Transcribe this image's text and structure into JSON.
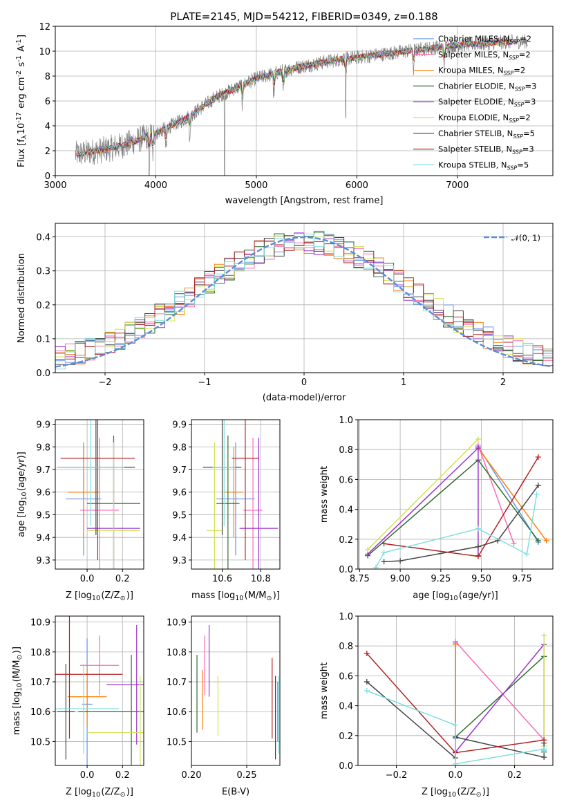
{
  "title": "PLATE=2145, MJD=54212, FIBERID=0349, z=0.188",
  "colors": {
    "Chabrier MILES": "#6495ed",
    "Salpeter MILES": "#ff69b4",
    "Kroupa MILES": "#ff7f0e",
    "Chabrier ELODIE": "#2e6b2e",
    "Salpeter ELODIE": "#9932cc",
    "Kroupa ELODIE": "#d4e157",
    "Chabrier STELIB": "#444444",
    "Salpeter STELIB": "#b22222",
    "Kroupa STELIB": "#80dedf",
    "normal": "#5b8bd9",
    "data": "#808080"
  },
  "chart_data": [
    {
      "id": "spectrum",
      "type": "line",
      "xlabel": "wavelength [Angstrom, rest frame]",
      "ylabel": "Flux [f$_\\lambda$10$^{-17}$ erg cm$^{-2}$ s$^{-1}$ A$^{-1}$]",
      "xlim": [
        3000,
        7950
      ],
      "ylim": [
        0,
        12
      ],
      "xticks": [
        "3000",
        "4000",
        "5000",
        "6000",
        "7000"
      ],
      "yticks": [
        "0",
        "2",
        "4",
        "6",
        "8",
        "10",
        "12"
      ],
      "legend_position": "right",
      "legend": [
        {
          "label": "Chabrier MILES, N",
          "sub": "SSP",
          "suffix": "=2"
        },
        {
          "label": "Salpeter MILES, N",
          "sub": "SSP",
          "suffix": "=2"
        },
        {
          "label": "Kroupa MILES, N",
          "sub": "SSP",
          "suffix": "=2"
        },
        {
          "label": "Chabrier ELODIE, N",
          "sub": "SSP",
          "suffix": "=3"
        },
        {
          "label": "Salpeter ELODIE, N",
          "sub": "SSP",
          "suffix": "=3"
        },
        {
          "label": "Kroupa ELODIE, N",
          "sub": "SSP",
          "suffix": "=2"
        },
        {
          "label": "Chabrier STELIB, N",
          "sub": "SSP",
          "suffix": "=5"
        },
        {
          "label": "Salpeter STELIB, N",
          "sub": "SSP",
          "suffix": "=3"
        },
        {
          "label": "Kroupa STELIB, N",
          "sub": "SSP",
          "suffix": "=5"
        }
      ],
      "continuum": {
        "x": [
          3200,
          3500,
          3700,
          4000,
          4300,
          4600,
          5000,
          5400,
          5800,
          6200,
          6600,
          7000,
          7400,
          7700
        ],
        "y": [
          1.7,
          2.1,
          2.5,
          3.4,
          4.6,
          6.3,
          7.8,
          8.7,
          9.3,
          9.7,
          10.1,
          10.5,
          10.7,
          10.8
        ]
      },
      "data_range": [
        3200,
        7700
      ],
      "model_range": [
        3200,
        7550
      ]
    },
    {
      "id": "residuals",
      "type": "bar",
      "xlabel": "(data-model)/error",
      "ylabel": "Normed distribution",
      "xlim": [
        -2.5,
        2.5
      ],
      "ylim": [
        0,
        0.44
      ],
      "xticks": [
        "−2",
        "−1",
        "0",
        "1",
        "2"
      ],
      "yticks": [
        "0.0",
        "0.1",
        "0.2",
        "0.3",
        "0.4"
      ],
      "legend": [
        {
          "label": "𝒩(0, 1)"
        }
      ],
      "bin_width": 0.1,
      "normal": {
        "mean": 0,
        "sd": 1
      }
    },
    {
      "id": "age-vs-Z",
      "type": "scatter",
      "xlabel": "Z [log$_{10}$(Z/Z$_\\odot$)]",
      "ylabel": "age  [log$_{10}$(age/yr)]",
      "xlim": [
        -0.18,
        0.32
      ],
      "ylim": [
        9.26,
        9.92
      ],
      "xticks": [
        "0.0",
        "0.2"
      ],
      "yticks": [
        "9.3",
        "9.4",
        "9.5",
        "9.6",
        "9.7",
        "9.8",
        "9.9"
      ],
      "points": [
        {
          "series": "Chabrier MILES",
          "x": -0.02,
          "y": 9.57,
          "xerr": 0.1,
          "yerr": 0.25
        },
        {
          "series": "Salpeter MILES",
          "x": 0.07,
          "y": 9.52,
          "xerr": 0.11,
          "yerr": 0.32
        },
        {
          "series": "Kroupa MILES",
          "x": -0.02,
          "y": 9.6,
          "xerr": 0.09,
          "yerr": 0.2
        },
        {
          "series": "Chabrier ELODIE",
          "x": 0.15,
          "y": 9.55,
          "xerr": 0.15,
          "yerr": 0.3
        },
        {
          "series": "Salpeter ELODIE",
          "x": 0.15,
          "y": 9.44,
          "xerr": 0.15,
          "yerr": 0.4
        },
        {
          "series": "Kroupa ELODIE",
          "x": 0.15,
          "y": 9.43,
          "xerr": 0.15,
          "yerr": 0.39
        },
        {
          "series": "Chabrier STELIB",
          "x": 0.05,
          "y": 9.71,
          "xerr": 0.22,
          "yerr": 0.3
        },
        {
          "series": "Salpeter STELIB",
          "x": 0.06,
          "y": 9.75,
          "xerr": 0.21,
          "yerr": 0.45
        },
        {
          "series": "Kroupa STELIB",
          "x": 0.02,
          "y": 9.71,
          "xerr": 0.19,
          "yerr": 0.26
        }
      ]
    },
    {
      "id": "age-vs-mass",
      "type": "scatter",
      "xlabel": "mass [log$_{10}$(M/M$_\\odot$)]",
      "ylabel": "",
      "xlim": [
        10.44,
        10.9
      ],
      "ylim": [
        9.26,
        9.92
      ],
      "xticks": [
        "10.6",
        "10.8"
      ],
      "yticks": [
        "9.3",
        "9.4",
        "9.5",
        "9.6",
        "9.7",
        "9.8",
        "9.9"
      ],
      "points": [
        {
          "series": "Chabrier MILES",
          "x": 10.67,
          "y": 9.57,
          "xerr": 0.1,
          "yerr": 0.25
        },
        {
          "series": "Salpeter MILES",
          "x": 10.76,
          "y": 9.52,
          "xerr": 0.05,
          "yerr": 0.32
        },
        {
          "series": "Kroupa MILES",
          "x": 10.66,
          "y": 9.6,
          "xerr": 0.05,
          "yerr": 0.2
        },
        {
          "series": "Chabrier ELODIE",
          "x": 10.63,
          "y": 9.55,
          "xerr": 0.06,
          "yerr": 0.3
        },
        {
          "series": "Salpeter ELODIE",
          "x": 10.79,
          "y": 9.44,
          "xerr": 0.1,
          "yerr": 0.4
        },
        {
          "series": "Kroupa ELODIE",
          "x": 10.56,
          "y": 9.43,
          "xerr": 0.04,
          "yerr": 0.39
        },
        {
          "series": "Chabrier STELIB",
          "x": 10.6,
          "y": 9.71,
          "xerr": 0.1,
          "yerr": 0.3
        },
        {
          "series": "Salpeter STELIB",
          "x": 10.72,
          "y": 9.75,
          "xerr": 0.07,
          "yerr": 0.45
        },
        {
          "series": "Kroupa STELIB",
          "x": 10.61,
          "y": 9.71,
          "xerr": 0.06,
          "yerr": 0.26
        }
      ]
    },
    {
      "id": "massweight-vs-age",
      "type": "line",
      "xlabel": "age  [log$_{10}$(age/yr)]",
      "ylabel": "mass weight",
      "xlim": [
        8.74,
        9.94
      ],
      "ylim": [
        0,
        1
      ],
      "xticks": [
        "8.75",
        "9.00",
        "9.25",
        "9.50",
        "9.75"
      ],
      "yticks": [
        "0.0",
        "0.2",
        "0.4",
        "0.6",
        "0.8",
        "1.0"
      ],
      "series": [
        {
          "name": "Chabrier MILES",
          "x": [
            9.48,
            9.85
          ],
          "y": [
            0.82,
            0.18
          ]
        },
        {
          "name": "Salpeter MILES",
          "x": [
            9.48,
            9.7
          ],
          "y": [
            0.83,
            0.17
          ]
        },
        {
          "name": "Kroupa MILES",
          "x": [
            9.48,
            9.9
          ],
          "y": [
            0.81,
            0.19
          ]
        },
        {
          "name": "Chabrier ELODIE",
          "x": [
            8.8,
            9.48,
            9.85
          ],
          "y": [
            0.09,
            0.73,
            0.19
          ]
        },
        {
          "name": "Salpeter ELODIE",
          "x": [
            8.8,
            9.48,
            9.48
          ],
          "y": [
            0.1,
            0.81,
            0.09
          ]
        },
        {
          "name": "Kroupa ELODIE",
          "x": [
            8.8,
            9.48
          ],
          "y": [
            0.13,
            0.87
          ]
        },
        {
          "name": "Chabrier STELIB",
          "x": [
            8.9,
            9.0,
            9.48,
            9.6,
            9.85
          ],
          "y": [
            0.05,
            0.055,
            0.15,
            0.19,
            0.56
          ]
        },
        {
          "name": "Salpeter STELIB",
          "x": [
            8.9,
            9.48,
            9.85
          ],
          "y": [
            0.17,
            0.085,
            0.75
          ]
        },
        {
          "name": "Kroupa STELIB",
          "x": [
            8.85,
            8.9,
            9.48,
            9.78,
            9.84
          ],
          "y": [
            0.01,
            0.11,
            0.27,
            0.1,
            0.5
          ]
        }
      ]
    },
    {
      "id": "mass-vs-Z",
      "type": "scatter",
      "xlabel": "Z [log$_{10}$(Z/Z$_\\odot$)]",
      "ylabel": "mass [log$_{10}$(M/M$_\\odot$)]",
      "xlim": [
        -0.18,
        0.32
      ],
      "ylim": [
        10.42,
        10.92
      ],
      "xticks": [
        "0.0",
        "0.2"
      ],
      "yticks": [
        "10.5",
        "10.6",
        "10.7",
        "10.8",
        "10.9"
      ],
      "points": [
        {
          "series": "Chabrier MILES",
          "x": 0.0,
          "y": 10.625,
          "xerr": 0.03,
          "yerr": 0.22
        },
        {
          "series": "Salpeter MILES",
          "x": 0.07,
          "y": 10.755,
          "xerr": 0.11,
          "yerr": 0.1
        },
        {
          "series": "Kroupa MILES",
          "x": 0.0,
          "y": 10.65,
          "xerr": 0.11,
          "yerr": 0.1
        },
        {
          "series": "Chabrier ELODIE",
          "x": 0.25,
          "y": 10.6,
          "xerr": 0.3,
          "yerr": 0.19
        },
        {
          "series": "Salpeter ELODIE",
          "x": 0.28,
          "y": 10.69,
          "xerr": 0.17,
          "yerr": 0.2
        },
        {
          "series": "Kroupa ELODIE",
          "x": 0.3,
          "y": 10.53,
          "xerr": 0.3,
          "yerr": 0.19
        },
        {
          "series": "Chabrier STELIB",
          "x": -0.12,
          "y": 10.6,
          "xerr": 0.05,
          "yerr": 0.16
        },
        {
          "series": "Salpeter STELIB",
          "x": -0.1,
          "y": 10.725,
          "xerr": 0.3,
          "yerr": 0.215
        },
        {
          "series": "Kroupa STELIB",
          "x": -0.02,
          "y": 10.61,
          "xerr": 0.2,
          "yerr": 0.15
        }
      ]
    },
    {
      "id": "mass-vs-ebv",
      "type": "scatter",
      "xlabel": "E(B-V)",
      "ylabel": "",
      "xlim": [
        0.2,
        0.28
      ],
      "ylim": [
        10.42,
        10.92
      ],
      "xticks": [
        "0.20",
        "0.25"
      ],
      "yticks": [
        "10.5",
        "10.6",
        "10.7",
        "10.8",
        "10.9"
      ],
      "points": [
        {
          "series": "Chabrier MILES",
          "x": 0.278,
          "y": 10.6,
          "yerr": 0.1
        },
        {
          "series": "Salpeter MILES",
          "x": 0.212,
          "y": 10.755,
          "yerr": 0.1
        },
        {
          "series": "Kroupa MILES",
          "x": 0.21,
          "y": 10.64,
          "yerr": 0.1
        },
        {
          "series": "Chabrier ELODIE",
          "x": 0.205,
          "y": 10.66,
          "yerr": 0.13
        },
        {
          "series": "Salpeter ELODIE",
          "x": 0.216,
          "y": 10.77,
          "yerr": 0.12
        },
        {
          "series": "Kroupa ELODIE",
          "x": 0.224,
          "y": 10.62,
          "yerr": 0.1
        },
        {
          "series": "Chabrier STELIB",
          "x": 0.276,
          "y": 10.58,
          "yerr": 0.14
        },
        {
          "series": "Salpeter STELIB",
          "x": 0.273,
          "y": 10.645,
          "yerr": 0.135
        },
        {
          "series": "Kroupa STELIB",
          "x": 0.279,
          "y": 10.59,
          "yerr": 0.13
        }
      ]
    },
    {
      "id": "massweight-vs-Z",
      "type": "line",
      "xlabel": "Z [log$_{10}$(Z/Z$_\\odot$)]",
      "ylabel": "mass weight",
      "xlim": [
        -0.33,
        0.33
      ],
      "ylim": [
        0,
        1
      ],
      "xticks": [
        "−0.2",
        "0.0",
        "0.2"
      ],
      "yticks": [
        "0.0",
        "0.2",
        "0.4",
        "0.6",
        "0.8",
        "1.0"
      ],
      "series": [
        {
          "name": "Chabrier MILES",
          "x": [
            0.0,
            0.0
          ],
          "y": [
            0.82,
            0.18
          ]
        },
        {
          "name": "Salpeter MILES",
          "x": [
            0.0,
            0.3
          ],
          "y": [
            0.83,
            0.17
          ]
        },
        {
          "name": "Kroupa MILES",
          "x": [
            0.0,
            0.0
          ],
          "y": [
            0.81,
            0.19
          ]
        },
        {
          "name": "Chabrier ELODIE",
          "x": [
            0.0,
            0.3,
            0.3
          ],
          "y": [
            0.19,
            0.73,
            0.09
          ]
        },
        {
          "name": "Salpeter ELODIE",
          "x": [
            0.0,
            0.3,
            0.3
          ],
          "y": [
            0.09,
            0.81,
            0.1
          ]
        },
        {
          "name": "Kroupa ELODIE",
          "x": [
            0.3,
            0.3
          ],
          "y": [
            0.13,
            0.87
          ]
        },
        {
          "name": "Chabrier STELIB",
          "x": [
            -0.3,
            0.0,
            0.0,
            0.3,
            0.3
          ],
          "y": [
            0.56,
            0.05,
            0.19,
            0.055,
            0.15
          ]
        },
        {
          "name": "Salpeter STELIB",
          "x": [
            -0.3,
            0.0,
            0.3
          ],
          "y": [
            0.75,
            0.085,
            0.17
          ]
        },
        {
          "name": "Kroupa STELIB",
          "x": [
            -0.3,
            0.0,
            0.0,
            0.3,
            0.3
          ],
          "y": [
            0.5,
            0.27,
            0.01,
            0.11,
            0.1
          ]
        }
      ]
    }
  ]
}
